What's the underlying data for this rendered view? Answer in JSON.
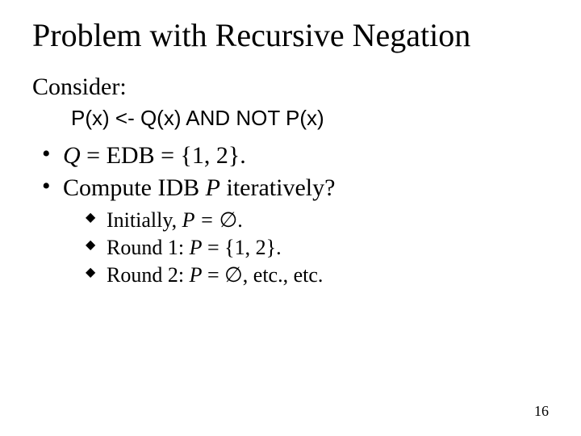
{
  "title": "Problem with Recursive Negation",
  "consider": "Consider:",
  "code": "P(x) <- Q(x) AND NOT P(x)",
  "bullets": {
    "b1_pre": "Q",
    "b1_post": " = EDB = {1, 2}.",
    "b2_pre": "Compute IDB ",
    "b2_mid": "P",
    "b2_post": " iteratively?"
  },
  "sub": {
    "s1_pre": "Initially, ",
    "s1_ital": "P = ",
    "s1_sym": "∅",
    "s1_post": ".",
    "s2_pre": "Round 1: ",
    "s2_ital": "P",
    "s2_post": " = {1, 2}.",
    "s3_pre": "Round 2: ",
    "s3_ital": "P",
    "s3_mid": " = ",
    "s3_sym": "∅",
    "s3_post": ", etc., etc."
  },
  "page_number": "16"
}
